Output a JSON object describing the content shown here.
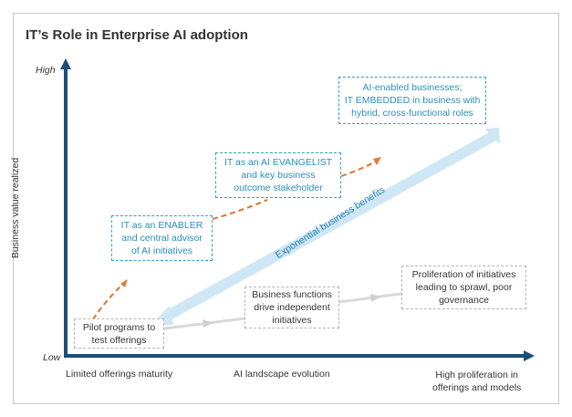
{
  "title": "IT’s Role in Enterprise AI adoption",
  "axes": {
    "y_label": "Business value realized",
    "y_high": "High",
    "y_low": "Low",
    "x_labels": [
      "Limited offerings maturity",
      "AI landscape evolution",
      "High proliferation in offerings and models"
    ],
    "x_label_right_lines": [
      "High proliferation in",
      "offerings and models"
    ]
  },
  "diagonal_label": "Exponential business benefits",
  "blue_boxes": [
    {
      "lines": [
        "IT as an ENABLER",
        "and central advisor",
        "of AI initiatives"
      ]
    },
    {
      "lines": [
        "IT as an AI EVANGELIST",
        "and key business",
        "outcome stakeholder"
      ]
    },
    {
      "lines": [
        "AI-enabled businesses;",
        "IT EMBEDDED in business with",
        "hybrid, cross-functional roles"
      ]
    }
  ],
  "gray_boxes": [
    {
      "lines": [
        "Pilot programs to",
        "test offerings"
      ]
    },
    {
      "lines": [
        "Business functions",
        "drive independent",
        "initiatives"
      ]
    },
    {
      "lines": [
        "Proliferation of initiatives",
        "leading to sprawl, poor",
        "governance"
      ]
    }
  ],
  "colors": {
    "axis": "#1b4f7a",
    "blue_text": "#2a8fbd",
    "orange_arrow": "#e07b39",
    "band": "#cfe6f5",
    "gray_arrow": "#d9d9d9"
  }
}
